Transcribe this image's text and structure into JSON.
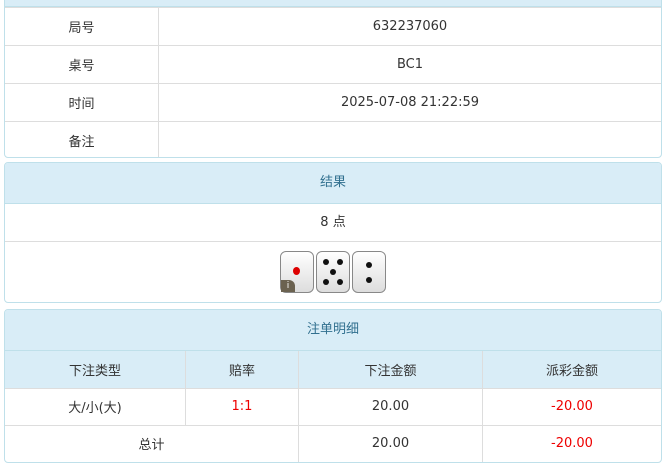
{
  "info": {
    "rows": [
      {
        "label": "局号",
        "value": "632237060"
      },
      {
        "label": "桌号",
        "value": "BC1"
      },
      {
        "label": "时间",
        "value": "2025-07-08 21:22:59"
      },
      {
        "label": "备注",
        "value": ""
      }
    ]
  },
  "result": {
    "title": "结果",
    "points": "8 点",
    "dice": [
      1,
      5,
      2
    ],
    "info_badge": "i"
  },
  "bets": {
    "title": "注单明细",
    "headers": [
      "下注类型",
      "赔率",
      "下注金额",
      "派彩金额"
    ],
    "rows": [
      {
        "type": "大/小(大)",
        "odds": "1:1",
        "amount": "20.00",
        "payout": "-20.00"
      }
    ],
    "total": {
      "label": "总计",
      "amount": "20.00",
      "payout": "-20.00"
    }
  },
  "colors": {
    "header_bg": "#d9edf7",
    "header_text": "#31708f",
    "negative": "#ee0000"
  }
}
